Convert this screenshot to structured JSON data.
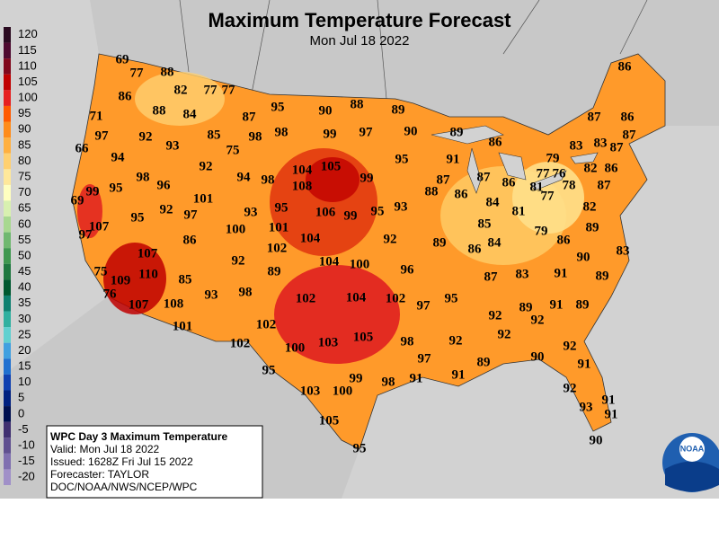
{
  "header": {
    "title": "Maximum Temperature Forecast",
    "subtitle": "Mon Jul 18 2022"
  },
  "legend": {
    "values": [
      120,
      115,
      110,
      105,
      100,
      95,
      90,
      85,
      80,
      75,
      70,
      65,
      60,
      55,
      50,
      45,
      40,
      35,
      30,
      25,
      20,
      15,
      10,
      5,
      0,
      -5,
      -10,
      -15,
      -20
    ],
    "colors": [
      "#2a0a20",
      "#4e0a30",
      "#80081c",
      "#c00000",
      "#e62020",
      "#ff5a00",
      "#ff8c1a",
      "#ffb040",
      "#ffd070",
      "#ffe89a",
      "#ffffc0",
      "#d8f0b0",
      "#a8d890",
      "#70b870",
      "#409850",
      "#207840",
      "#005830",
      "#108070",
      "#30b0a0",
      "#60d0d0",
      "#40a0e0",
      "#2070d0",
      "#1040b0",
      "#002080",
      "#001050",
      "#403070",
      "#605090",
      "#8070b0",
      "#a090c8"
    ]
  },
  "forecast_temperatures": [
    69,
    77,
    88,
    82,
    77,
    77,
    86,
    88,
    84,
    87,
    95,
    90,
    88,
    89,
    71,
    97,
    92,
    93,
    85,
    98,
    98,
    99,
    97,
    90,
    89,
    86,
    66,
    94,
    75,
    92,
    95,
    91,
    104,
    105,
    87,
    87,
    86,
    81,
    79,
    77,
    76,
    82,
    86,
    83,
    83,
    87,
    87,
    87,
    86,
    86,
    98,
    96,
    94,
    98,
    99,
    88,
    86,
    84,
    77,
    78,
    87,
    69,
    99,
    95,
    101,
    108,
    92,
    97,
    93,
    95,
    106,
    99,
    95,
    93,
    85,
    81,
    82,
    107,
    95,
    100,
    101,
    104,
    92,
    89,
    86,
    84,
    79,
    86,
    89,
    97,
    86,
    107,
    102,
    104,
    100,
    96,
    90,
    83,
    92,
    89,
    75,
    109,
    110,
    85,
    87,
    83,
    91,
    89,
    76,
    107,
    108,
    93,
    98,
    102,
    104,
    102,
    97,
    95,
    92,
    89,
    92,
    91,
    89,
    102,
    101,
    103,
    105,
    98,
    92,
    92,
    102,
    100,
    97,
    91,
    89,
    90,
    92,
    95,
    99,
    91,
    91,
    103,
    100,
    98,
    92,
    91,
    93,
    91,
    105,
    95,
    90
  ],
  "info_box": {
    "lines": [
      "WPC Day 3 Maximum Temperature",
      "Valid: Mon Jul 18 2022",
      "Issued: 1628Z Fri Jul 15 2022",
      "Forecaster: TAYLOR",
      "DOC/NOAA/NWS/NCEP/WPC"
    ]
  },
  "logo": {
    "text": "NOAA"
  }
}
